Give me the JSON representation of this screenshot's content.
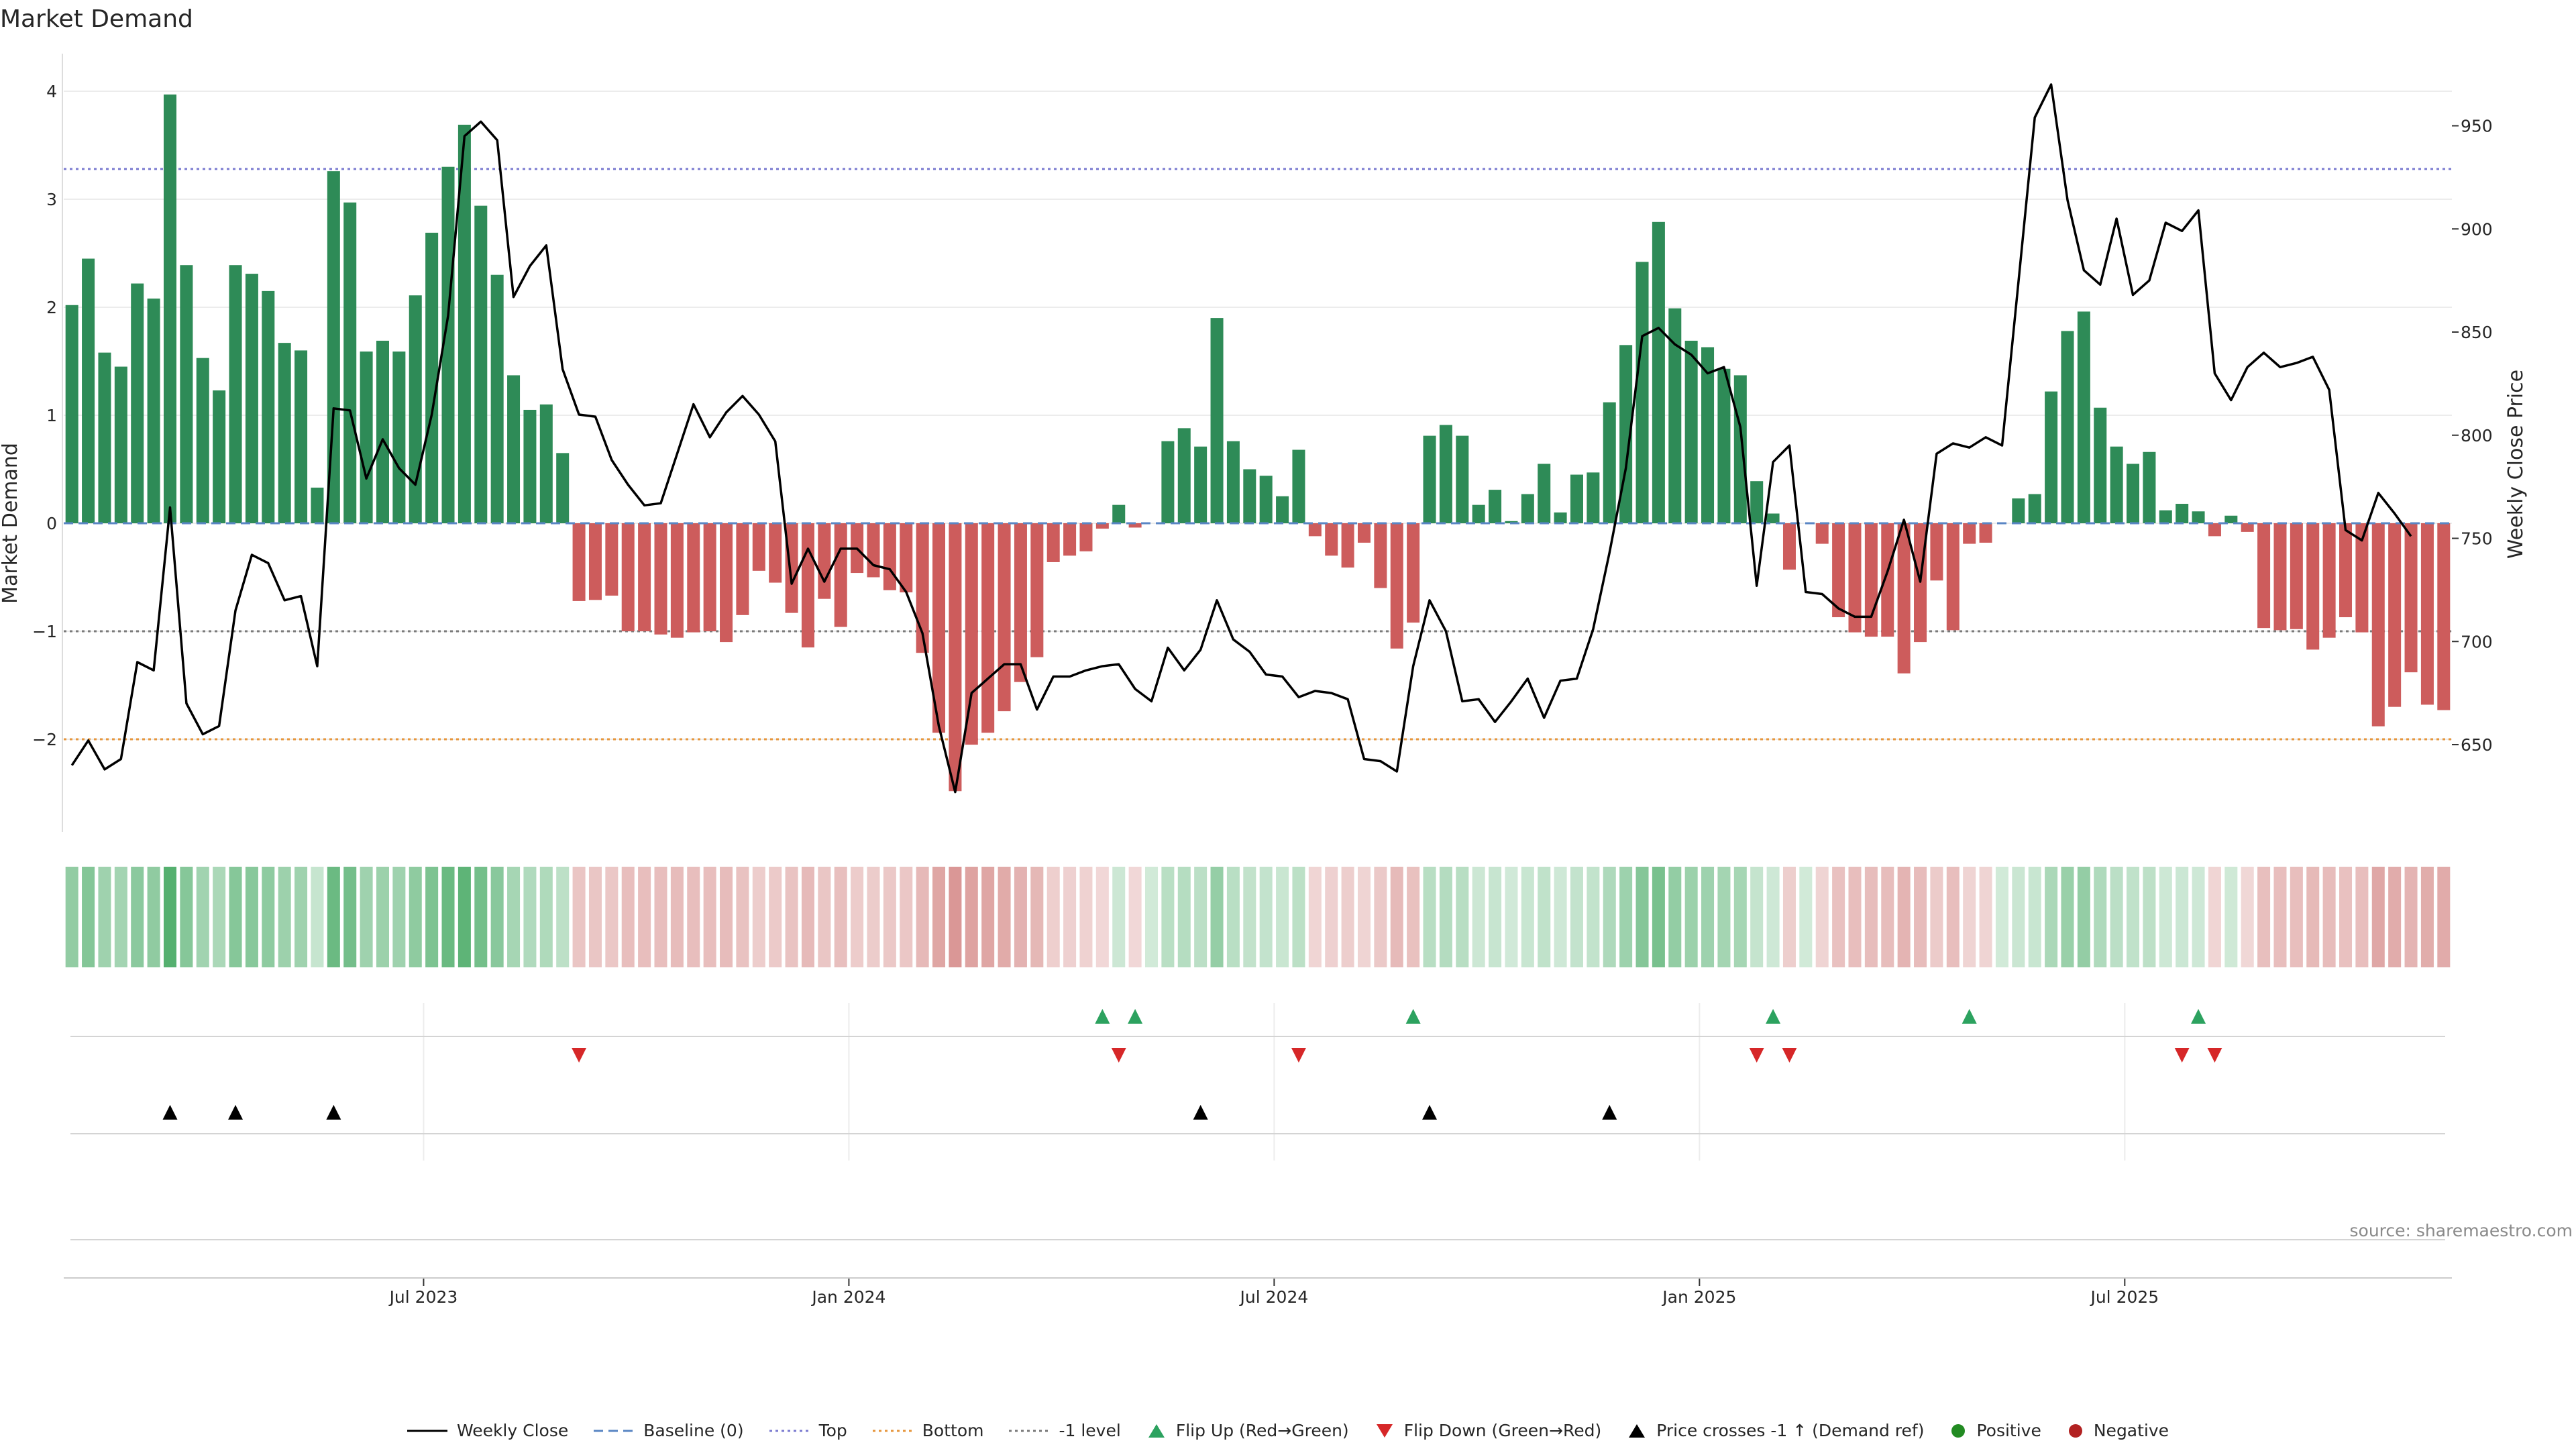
{
  "chart_data": {
    "type": "bar",
    "title": "Market Demand",
    "ylabel": "Market Demand",
    "y2label": "Weekly Close Price",
    "ylim": [
      -2.85,
      4.2
    ],
    "y2lim": [
      624,
      970
    ],
    "yticks": [
      -2,
      -1,
      0,
      1,
      2,
      3,
      4
    ],
    "yticklabels": [
      "−2",
      "−1",
      "0",
      "1",
      "2",
      "3",
      "4"
    ],
    "y2ticks": [
      650,
      700,
      750,
      800,
      850,
      900,
      950
    ],
    "y2ticklabels": [
      "650",
      "700",
      "750",
      "800",
      "850",
      "900",
      "950"
    ],
    "xticks": [
      22,
      48,
      74,
      100,
      126
    ],
    "xticklabels": [
      "Jul 2023",
      "Jan 2024",
      "Jul 2024",
      "Jan 2025",
      "Jul 2025"
    ],
    "levels": {
      "top": 3.28,
      "bottom": -2.0,
      "minus_one": -1.0,
      "baseline": 0
    },
    "demand": [
      2.02,
      2.45,
      1.58,
      1.45,
      2.22,
      2.08,
      3.97,
      2.39,
      1.53,
      1.23,
      2.39,
      2.31,
      2.15,
      1.67,
      1.6,
      0.33,
      3.26,
      2.97,
      1.59,
      1.69,
      1.59,
      2.11,
      2.69,
      3.3,
      3.69,
      2.94,
      2.3,
      1.37,
      1.05,
      1.1,
      0.65,
      -0.72,
      -0.71,
      -0.67,
      -1.0,
      -1.0,
      -1.03,
      -1.06,
      -1.01,
      -1.0,
      -1.1,
      -0.85,
      -0.44,
      -0.55,
      -0.83,
      -1.15,
      -0.7,
      -0.96,
      -0.46,
      -0.5,
      -0.62,
      -0.64,
      -1.2,
      -1.94,
      -2.48,
      -2.05,
      -1.94,
      -1.74,
      -1.47,
      -1.24,
      -0.36,
      -0.3,
      -0.26,
      -0.05,
      0.17,
      -0.04,
      0.0,
      0.76,
      0.88,
      0.71,
      1.9,
      0.76,
      0.5,
      0.44,
      0.25,
      0.68,
      -0.12,
      -0.3,
      -0.41,
      -0.18,
      -0.6,
      -1.16,
      -0.92,
      0.81,
      0.91,
      0.81,
      0.17,
      0.31,
      0.02,
      0.27,
      0.55,
      0.1,
      0.45,
      0.47,
      1.12,
      1.65,
      2.42,
      2.79,
      1.99,
      1.69,
      1.63,
      1.43,
      1.37,
      0.39,
      0.09,
      -0.43,
      0.0,
      -0.19,
      -0.87,
      -1.01,
      -1.05,
      -1.05,
      -1.39,
      -1.1,
      -0.53,
      -0.99,
      -0.19,
      -0.18,
      0.0,
      0.23,
      0.27,
      1.22,
      1.78,
      1.96,
      1.07,
      0.71,
      0.55,
      0.66,
      0.12,
      0.18,
      0.11,
      -0.12,
      0.07,
      -0.08,
      -0.97,
      -0.99,
      -0.98,
      -1.17,
      -1.06,
      -0.87,
      -1.01,
      -1.88,
      -1.7,
      -1.38,
      -1.68,
      -1.73
    ],
    "close": [
      640,
      652,
      638,
      643,
      690,
      686,
      765,
      670,
      655,
      659,
      715,
      742,
      738,
      720,
      722,
      688,
      813,
      812,
      779,
      798,
      784,
      776,
      810,
      858,
      945,
      952,
      943,
      867,
      882,
      892,
      832,
      810,
      809,
      788,
      776,
      766,
      767,
      791,
      815,
      799,
      811,
      819,
      810,
      797,
      728,
      745,
      729,
      745,
      745,
      737,
      735,
      724,
      704,
      659,
      627,
      675,
      682,
      689,
      689,
      667,
      683,
      683,
      686,
      688,
      689,
      677,
      671,
      697,
      686,
      696,
      720,
      701,
      695,
      684,
      683,
      673,
      676,
      675,
      672,
      643,
      642,
      637,
      688,
      720,
      705,
      671,
      672,
      661,
      671,
      682,
      663,
      681,
      682,
      706,
      743,
      784,
      848,
      852,
      844,
      839,
      830,
      833,
      804,
      727,
      787,
      795,
      724,
      723,
      716,
      712,
      712,
      734,
      759,
      729,
      791,
      796,
      794,
      799,
      795,
      874,
      954,
      970,
      914,
      880,
      873,
      905,
      868,
      875,
      903,
      899,
      909,
      830,
      817,
      833,
      840,
      833,
      835,
      838,
      822,
      754,
      749,
      772,
      762,
      751
    ],
    "flip_up_weeks": [
      63,
      65,
      82,
      104,
      116,
      130
    ],
    "flip_down_weeks": [
      31,
      64,
      75,
      103,
      105,
      129,
      131
    ],
    "price_cross_weeks": [
      6,
      10,
      16,
      69,
      83,
      94
    ],
    "source": "source: sharemaestro.com",
    "colors": {
      "positive_bar": "#2e8b57",
      "negative_bar": "#cd5c5c",
      "close_line": "#000000",
      "baseline": "#5a86c4",
      "top": "#7b7bd0",
      "bottom": "#e6963c",
      "minus_one": "#7a7a7a",
      "flip_up": "#2ca25f",
      "flip_down": "#d62728",
      "price_cross": "#000000",
      "positive_dot": "#228b22",
      "negative_dot": "#b22222"
    }
  },
  "legend": {
    "weekly_close": "Weekly Close",
    "baseline": "Baseline (0)",
    "top": "Top",
    "bottom": "Bottom",
    "minus_one": "-1 level",
    "flip_up": "Flip Up (Red→Green)",
    "flip_down": "Flip Down (Green→Red)",
    "price_cross": "Price crosses -1 ↑ (Demand ref)",
    "positive": "Positive",
    "negative": "Negative"
  }
}
